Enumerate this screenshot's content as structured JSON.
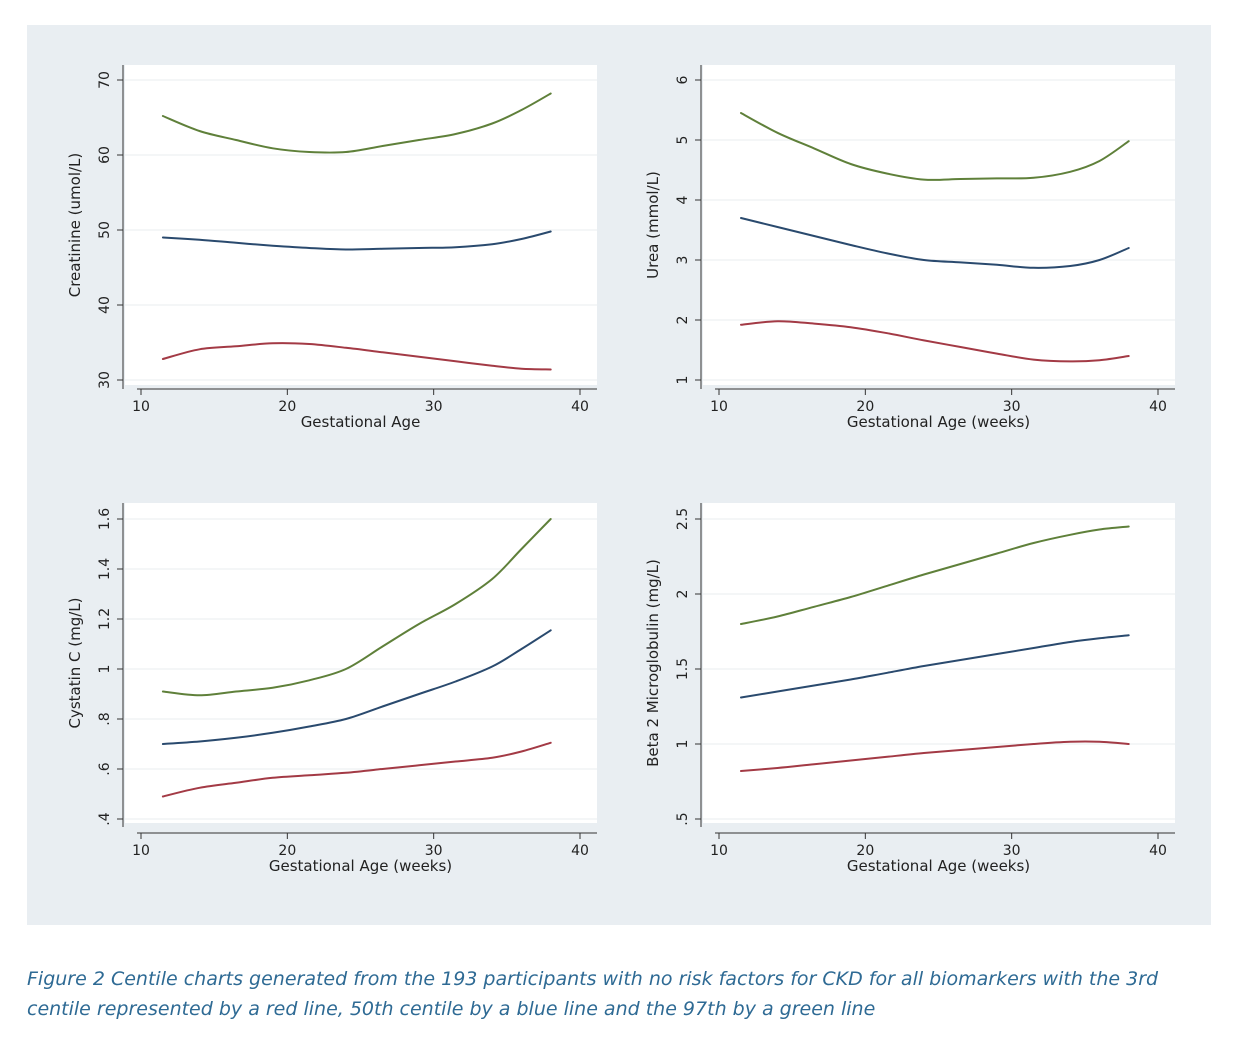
{
  "caption": "Figure 2 Centile charts generated from the 193 participants with no risk factors for CKD for all biomarkers with the 3rd centile represented by a red line, 50th centile by a blue line and the 97th by a green line",
  "colors": {
    "panel_bg": "#e9eef2",
    "plot_bg": "#ffffff",
    "red": "#a33a45",
    "blue": "#2a4a6e",
    "green": "#5f803a",
    "caption": "#2e6a94"
  },
  "chart_data": [
    {
      "type": "line",
      "xlabel": "Gestational Age",
      "ylabel": "Creatinine (umol/L)",
      "xlim": [
        10,
        40
      ],
      "ylim": [
        30,
        70
      ],
      "xticks": [
        10,
        20,
        30,
        40
      ],
      "xtick_labels": [
        "10",
        "20",
        "30",
        "40"
      ],
      "yticks": [
        30,
        40,
        50,
        60,
        70
      ],
      "ytick_labels": [
        "30",
        "40",
        "50",
        "60",
        "70"
      ],
      "grid": true,
      "x": [
        11.5,
        14,
        16.5,
        19,
        21.5,
        24,
        26.5,
        29,
        31.5,
        34,
        36,
        38
      ],
      "series": [
        {
          "color": "red",
          "values": [
            32.8,
            34.1,
            34.5,
            34.9,
            34.8,
            34.3,
            33.7,
            33.1,
            32.5,
            31.9,
            31.5,
            31.4
          ]
        },
        {
          "color": "blue",
          "values": [
            49.0,
            48.7,
            48.3,
            47.9,
            47.6,
            47.4,
            47.5,
            47.6,
            47.7,
            48.1,
            48.8,
            49.8
          ]
        },
        {
          "color": "green",
          "values": [
            65.2,
            63.2,
            62.0,
            60.9,
            60.4,
            60.4,
            61.2,
            62.0,
            62.8,
            64.2,
            66.0,
            68.2
          ]
        }
      ]
    },
    {
      "type": "line",
      "xlabel": "Gestational Age (weeks)",
      "ylabel": "Urea (mmol/L)",
      "xlim": [
        10,
        40
      ],
      "ylim": [
        1,
        6
      ],
      "xticks": [
        10,
        20,
        30,
        40
      ],
      "xtick_labels": [
        "10",
        "20",
        "30",
        "40"
      ],
      "yticks": [
        1,
        2,
        3,
        4,
        5,
        6
      ],
      "ytick_labels": [
        "1",
        "2",
        "3",
        "4",
        "5",
        "6"
      ],
      "grid": true,
      "x": [
        11.5,
        14,
        16.5,
        19,
        21.5,
        24,
        26.5,
        29,
        31.5,
        34,
        36,
        38
      ],
      "series": [
        {
          "color": "red",
          "values": [
            1.92,
            1.98,
            1.94,
            1.88,
            1.78,
            1.66,
            1.55,
            1.44,
            1.34,
            1.31,
            1.33,
            1.4
          ]
        },
        {
          "color": "blue",
          "values": [
            3.7,
            3.55,
            3.4,
            3.25,
            3.11,
            3.0,
            2.96,
            2.92,
            2.87,
            2.9,
            3.0,
            3.2
          ]
        },
        {
          "color": "green",
          "values": [
            5.45,
            5.12,
            4.86,
            4.6,
            4.44,
            4.34,
            4.35,
            4.36,
            4.37,
            4.47,
            4.65,
            4.98
          ]
        }
      ]
    },
    {
      "type": "line",
      "xlabel": "Gestational Age (weeks)",
      "ylabel": "Cystatin C (mg/L)",
      "xlim": [
        10,
        40
      ],
      "ylim": [
        0.4,
        1.6
      ],
      "xticks": [
        10,
        20,
        30,
        40
      ],
      "xtick_labels": [
        "10",
        "20",
        "30",
        "40"
      ],
      "yticks": [
        0.4,
        0.6,
        0.8,
        1.0,
        1.2,
        1.4,
        1.6
      ],
      "ytick_labels": [
        ".4",
        ".6",
        ".8",
        "1",
        "1.2",
        "1.4",
        "1.6"
      ],
      "grid": true,
      "x": [
        11.5,
        14,
        16.5,
        19,
        21.5,
        24,
        26.5,
        29,
        31.5,
        34,
        36,
        38
      ],
      "series": [
        {
          "color": "red",
          "values": [
            0.49,
            0.525,
            0.545,
            0.565,
            0.575,
            0.585,
            0.6,
            0.615,
            0.63,
            0.645,
            0.67,
            0.705
          ]
        },
        {
          "color": "blue",
          "values": [
            0.7,
            0.71,
            0.725,
            0.745,
            0.77,
            0.8,
            0.85,
            0.9,
            0.95,
            1.01,
            1.08,
            1.155
          ]
        },
        {
          "color": "green",
          "values": [
            0.91,
            0.895,
            0.91,
            0.925,
            0.955,
            1.0,
            1.09,
            1.18,
            1.26,
            1.36,
            1.48,
            1.6
          ]
        }
      ]
    },
    {
      "type": "line",
      "xlabel": "Gestational Age (weeks)",
      "ylabel": "Beta 2 Microglobulin (mg/L)",
      "xlim": [
        10,
        40
      ],
      "ylim": [
        0.5,
        2.5
      ],
      "xticks": [
        10,
        20,
        30,
        40
      ],
      "xtick_labels": [
        "10",
        "20",
        "30",
        "40"
      ],
      "yticks": [
        0.5,
        1.0,
        1.5,
        2.0,
        2.5
      ],
      "ytick_labels": [
        ".5",
        "1",
        "1.5",
        "2",
        "2.5"
      ],
      "grid": true,
      "x": [
        11.5,
        14,
        16.5,
        19,
        21.5,
        24,
        26.5,
        29,
        31.5,
        34,
        36,
        38
      ],
      "series": [
        {
          "color": "red",
          "values": [
            0.82,
            0.84,
            0.865,
            0.89,
            0.915,
            0.94,
            0.96,
            0.98,
            1.0,
            1.015,
            1.015,
            1.0
          ]
        },
        {
          "color": "blue",
          "values": [
            1.31,
            1.35,
            1.39,
            1.43,
            1.475,
            1.52,
            1.56,
            1.6,
            1.64,
            1.68,
            1.705,
            1.725
          ]
        },
        {
          "color": "green",
          "values": [
            1.8,
            1.85,
            1.915,
            1.98,
            2.055,
            2.13,
            2.2,
            2.27,
            2.34,
            2.395,
            2.43,
            2.45
          ]
        }
      ]
    }
  ]
}
